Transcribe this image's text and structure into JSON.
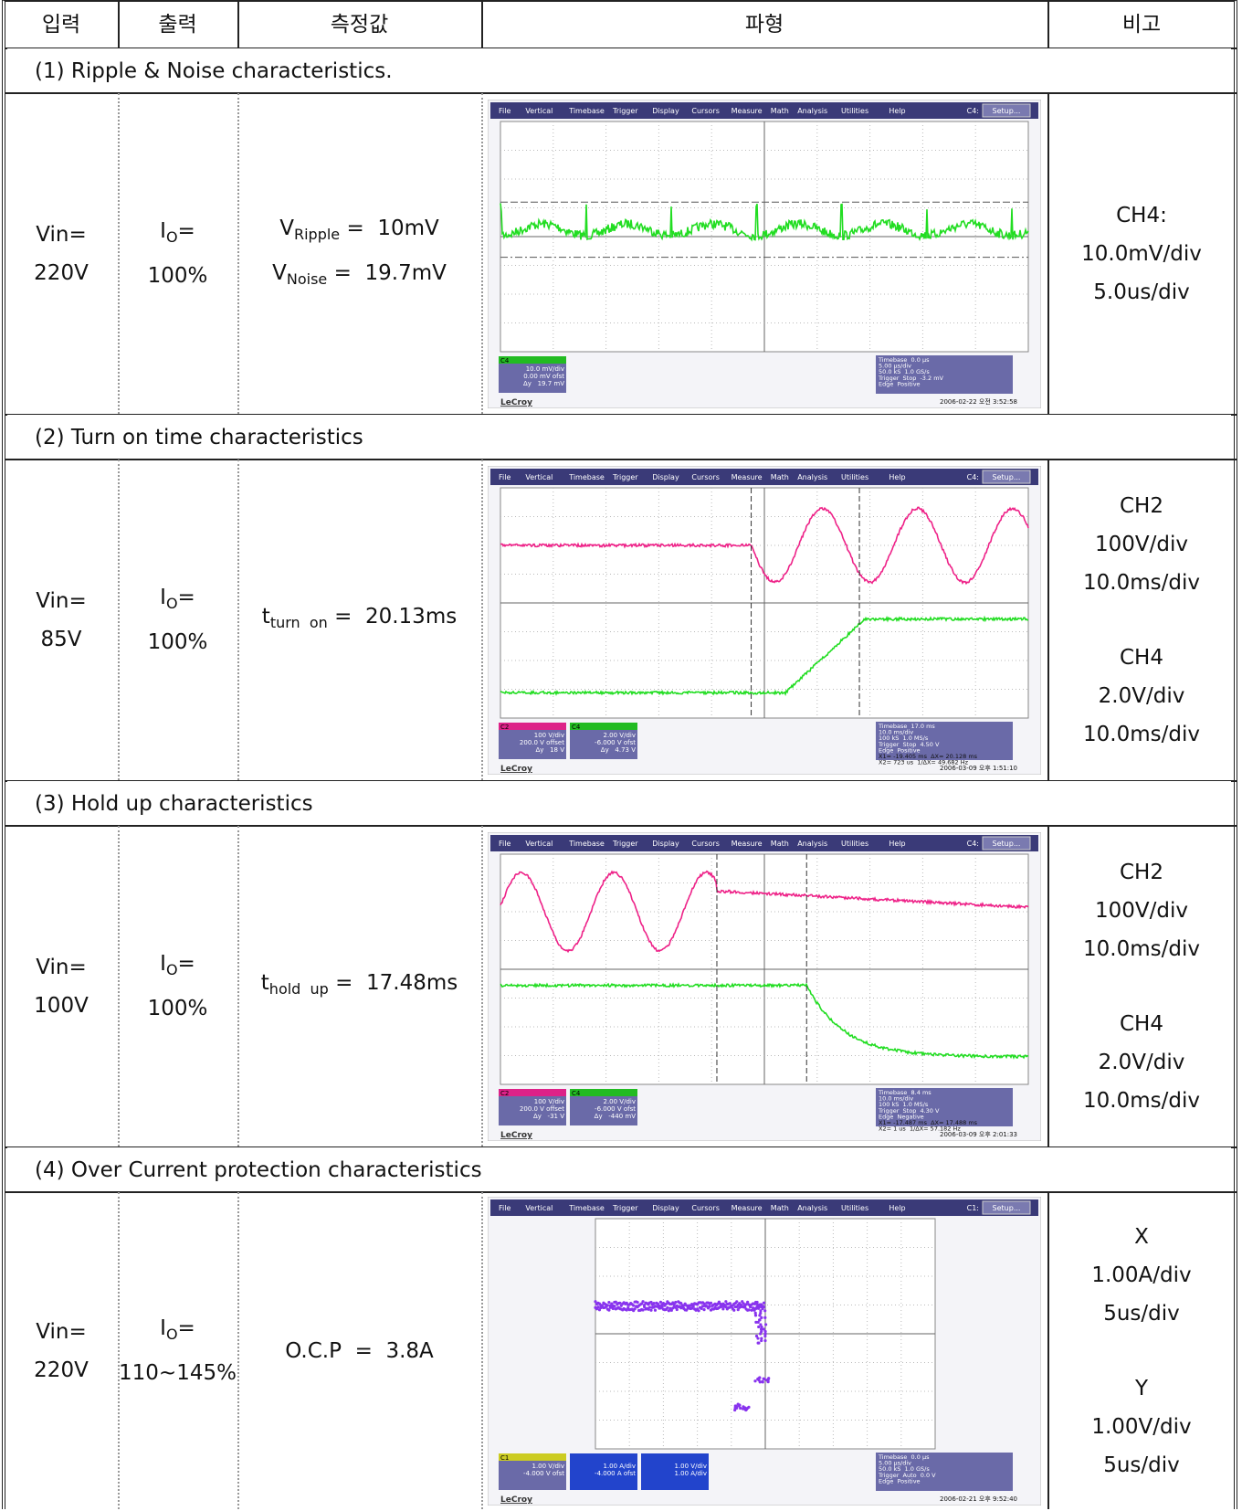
{
  "header": [
    "입력",
    "출력",
    "측정값",
    "파형",
    "비고"
  ],
  "scope_menu": [
    "File",
    "Vertical",
    "Timebase",
    "Trigger",
    "Display",
    "Cursors",
    "Measure",
    "Math",
    "Analysis",
    "Utilities",
    "Help"
  ],
  "scope_setup": "Setup...",
  "scope_brand": "LeCroy",
  "sections": [
    {
      "title": "(1) Ripple & Noise characteristics.",
      "input": [
        "Vin=",
        "220V"
      ],
      "output": {
        "symbol": "I",
        "sub": "O",
        "eq": "=",
        "value": "100%"
      },
      "measure": [
        {
          "symbol": "V",
          "sub": "Ripple",
          "rest": " =  10mV"
        },
        {
          "symbol": "V",
          "sub": "Noise",
          "rest": " =  19.7mV"
        }
      ],
      "scope": {
        "channel": "C4:",
        "boxes": [
          {
            "head": "C4",
            "lines": [
              "10.0 mV/div",
              "0.00 mV ofst",
              "Δy   19.7 mV"
            ]
          }
        ],
        "readout": [
          "Timebase  0.0 µs",
          "5.00 µs/div",
          "50.0 kS  1.0 GS/s",
          "Trigger  Stop  -3.2 mV",
          "Edge  Positive"
        ],
        "timestamp": "2006-02-22 오전 3:52:58"
      },
      "note": [
        [
          "CH4:",
          "10.0mV/div",
          "5.0us/div"
        ]
      ]
    },
    {
      "title": "(2) Turn on time characteristics",
      "input": [
        "Vin=",
        "85V"
      ],
      "output": {
        "symbol": "I",
        "sub": "O",
        "eq": "=",
        "value": "100%"
      },
      "measure": [
        {
          "symbol": "t",
          "sub": "turn  on",
          "rest": " =  20.13ms"
        }
      ],
      "scope": {
        "channel": "C4:",
        "boxes": [
          {
            "head": "C2",
            "lines": [
              "100 V/div",
              "200.0 V offset",
              "Δy   18 V"
            ]
          },
          {
            "head": "C4",
            "lines": [
              "2.00 V/div",
              "-6.000 V ofst",
              "Δy   4.73 V"
            ]
          }
        ],
        "readout": [
          "Timebase  17.0 ms",
          "10.0 ms/div",
          "100 kS  1.0 MS/s",
          "Trigger  Stop  4.50 V",
          "Edge  Positive",
          "X1= -19.405 ms  ΔX= 20.128 ms",
          "X2= 723 us  1/ΔX= 49.682 Hz"
        ],
        "timestamp": "2006-03-09 오후 1:51:10"
      },
      "note": [
        [
          "CH2",
          "100V/div",
          "10.0ms/div"
        ],
        [
          "CH4",
          "2.0V/div",
          "10.0ms/div"
        ]
      ]
    },
    {
      "title": "(3) Hold up characteristics",
      "input": [
        "Vin=",
        "100V"
      ],
      "output": {
        "symbol": "I",
        "sub": "O",
        "eq": "=",
        "value": "100%"
      },
      "measure": [
        {
          "symbol": "t",
          "sub": "hold  up",
          "rest": " =  17.48ms"
        }
      ],
      "scope": {
        "channel": "C4:",
        "boxes": [
          {
            "head": "C2",
            "lines": [
              "100 V/div",
              "200.0 V offset",
              "Δy   -31 V"
            ]
          },
          {
            "head": "C4",
            "lines": [
              "2.00 V/div",
              "-6.000 V ofst",
              "Δy   -440 mV"
            ]
          }
        ],
        "readout": [
          "Timebase  8.4 ms",
          "10.0 ms/div",
          "100 kS  1.0 MS/s",
          "Trigger  Stop  4.30 V",
          "Edge  Negative",
          "X1= -17.487 ms  ΔX= 17.488 ms",
          "X2= 1 us  1/ΔX= 57.182 Hz"
        ],
        "timestamp": "2006-03-09 오후 2:01:33"
      },
      "note": [
        [
          "CH2",
          "100V/div",
          "10.0ms/div"
        ],
        [
          "CH4",
          "2.0V/div",
          "10.0ms/div"
        ]
      ]
    },
    {
      "title": "(4) Over Current protection characteristics",
      "input": [
        "Vin=",
        "220V"
      ],
      "output": {
        "symbol": "I",
        "sub": "O",
        "eq": "=",
        "value": "110~145%"
      },
      "measure": [
        {
          "rest": "O.C.P  =  3.8A"
        }
      ],
      "scope": {
        "channel": "C1:",
        "boxes": [
          {
            "head": "C1",
            "lines": [
              "1.00 V/div",
              "-4.000 V ofst"
            ]
          },
          {
            "lines": [
              "1.00 A/div",
              "-4.000 A ofst"
            ]
          },
          {
            "lines": [
              "1.00 V/div",
              "1.00 A/div"
            ]
          }
        ],
        "readout": [
          "Timebase  0.0 µs",
          "5.00 µs/div",
          "50.0 kS  1.0 GS/s",
          "Trigger  Auto  0.0 V",
          "Edge  Positive"
        ],
        "timestamp": "2006-02-21 오후 9:52:40"
      },
      "note": [
        [
          "X",
          "1.00A/div",
          "5us/div"
        ],
        [
          "Y",
          "1.00V/div",
          "5us/div"
        ]
      ]
    }
  ]
}
